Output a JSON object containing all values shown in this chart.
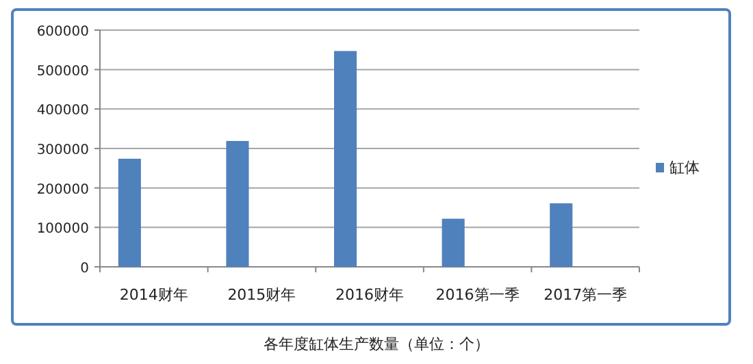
{
  "chart_data": {
    "type": "bar",
    "title": "各年度缸体生产数量（单位：个）",
    "categories": [
      "2014财年",
      "2015财年",
      "2016财年",
      "2016第一季",
      "2017第一季"
    ],
    "series": [
      {
        "name": "缸体",
        "color": "#4f81bd",
        "values": [
          274000,
          319000,
          547000,
          122000,
          161000
        ]
      }
    ],
    "ylim": [
      0,
      600000
    ],
    "yticks": [
      0,
      100000,
      200000,
      300000,
      400000,
      500000,
      600000
    ],
    "grid": "y",
    "legend": "right"
  }
}
